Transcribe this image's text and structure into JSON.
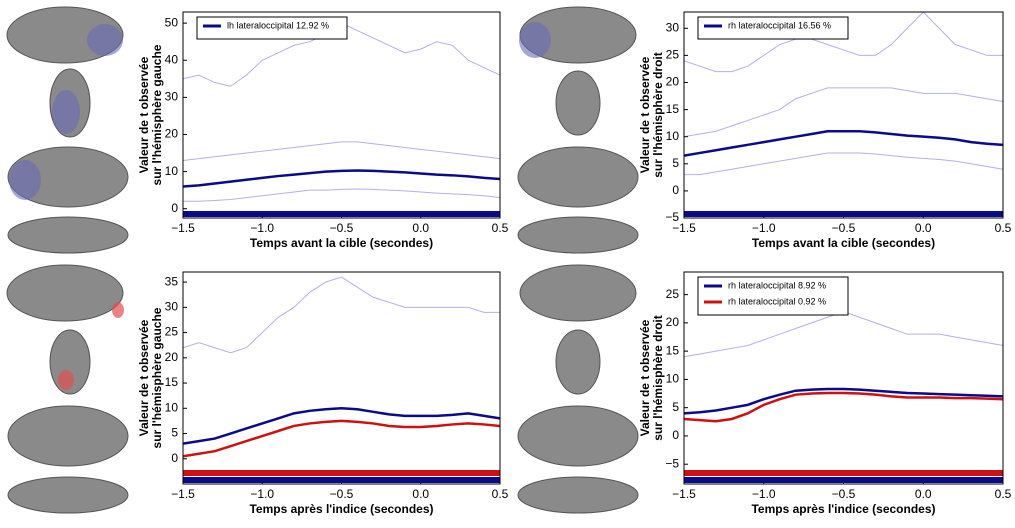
{
  "chart_data": [
    {
      "type": "line",
      "ylabel": [
        "Valeur de t observée",
        "sur l'hémisphère gauche"
      ],
      "xlabel": "Temps avant la cible (secondes)",
      "x": [
        -1.5,
        -1.4,
        -1.3,
        -1.2,
        -1.1,
        -1.0,
        -0.9,
        -0.8,
        -0.7,
        -0.6,
        -0.5,
        -0.4,
        -0.3,
        -0.2,
        -0.1,
        0.0,
        0.1,
        0.2,
        0.3,
        0.4,
        0.5
      ],
      "xlim": [
        -1.5,
        0.5
      ],
      "xticks": [
        {
          "value": -1.5,
          "label": "−1.5"
        },
        {
          "value": -1.0,
          "label": "−1.0"
        },
        {
          "value": -0.5,
          "label": "−0.5"
        },
        {
          "value": 0,
          "label": "0.0"
        },
        0.5
      ],
      "ylim": [
        -2.5,
        53
      ],
      "yticks": [
        0,
        10,
        20,
        30,
        40,
        50
      ],
      "series": [
        {
          "color": "#3a3ad0",
          "linewidth": 1,
          "values": [
            35,
            36,
            34,
            33,
            36,
            40,
            42,
            44,
            45,
            47,
            50,
            48,
            46,
            44,
            42,
            43,
            45,
            44,
            40,
            38,
            36
          ]
        },
        {
          "color": "#3a3ad0",
          "linewidth": 1,
          "values": [
            13,
            13.5,
            14,
            14.5,
            15,
            15.5,
            16,
            16.5,
            17,
            17.5,
            18,
            18,
            17.5,
            17,
            16.5,
            16,
            15.5,
            15,
            14.5,
            14,
            13.5
          ]
        },
        {
          "color": "#3a3ad0",
          "linewidth": 1,
          "values": [
            2,
            2,
            2.2,
            2.5,
            3,
            3.5,
            4,
            4.5,
            5,
            5,
            5.2,
            5.3,
            5.2,
            5,
            4.8,
            4.5,
            4.2,
            4,
            3.8,
            3.5,
            3
          ]
        },
        {
          "name": "lh lateraloccipital 12.92 %",
          "color": "#0a0a8a",
          "linewidth": 2.5,
          "values": [
            6,
            6.3,
            6.8,
            7.3,
            7.8,
            8.3,
            8.8,
            9.2,
            9.6,
            10,
            10.2,
            10.3,
            10.2,
            10,
            9.8,
            9.5,
            9.2,
            9,
            8.7,
            8.3,
            8
          ]
        }
      ]
    },
    {
      "type": "line",
      "ylabel": [
        "Valeur de t observée",
        "sur l'hémisphère droit"
      ],
      "xlabel": "Temps avant la cible (secondes)",
      "x": [
        -1.5,
        -1.4,
        -1.3,
        -1.2,
        -1.1,
        -1.0,
        -0.9,
        -0.8,
        -0.7,
        -0.6,
        -0.5,
        -0.4,
        -0.3,
        -0.2,
        -0.1,
        0.0,
        0.1,
        0.2,
        0.3,
        0.4,
        0.5
      ],
      "xlim": [
        -1.5,
        0.5
      ],
      "xticks": [
        {
          "value": -1.5,
          "label": "−1.5"
        },
        {
          "value": -1.0,
          "label": "−1.0"
        },
        {
          "value": -0.5,
          "label": "−0.5"
        },
        {
          "value": 0,
          "label": "0.0"
        },
        0.5
      ],
      "ylim": [
        -5,
        33
      ],
      "yticks": [
        {
          "value": -5,
          "label": "−5"
        },
        0,
        5,
        10,
        15,
        20,
        25,
        30
      ],
      "series": [
        {
          "color": "#3a3ad0",
          "linewidth": 1,
          "values": [
            24,
            23,
            22,
            22,
            23,
            25,
            27,
            28,
            28,
            27,
            26,
            25,
            25,
            27,
            30,
            33,
            30,
            27,
            26,
            25,
            25
          ]
        },
        {
          "color": "#3a3ad0",
          "linewidth": 1,
          "values": [
            10,
            10.5,
            11,
            12,
            13,
            14,
            15,
            17,
            18,
            19,
            19,
            19,
            19,
            19,
            18.5,
            18,
            18,
            18,
            17.5,
            17,
            16.5
          ]
        },
        {
          "color": "#3a3ad0",
          "linewidth": 1,
          "values": [
            3,
            3,
            3.5,
            4,
            4.5,
            5,
            5.5,
            6,
            6.5,
            7,
            7,
            7,
            6.8,
            6.5,
            6.2,
            6,
            5.8,
            5.5,
            5,
            4.5,
            4
          ]
        },
        {
          "name": "rh lateraloccipital 16.56 %",
          "color": "#0a0a8a",
          "linewidth": 2.5,
          "values": [
            6.5,
            7,
            7.5,
            8,
            8.5,
            9,
            9.5,
            10,
            10.5,
            11,
            11,
            11,
            10.8,
            10.5,
            10.2,
            10,
            9.8,
            9.5,
            9,
            8.7,
            8.5
          ]
        }
      ]
    },
    {
      "type": "line",
      "ylabel": [
        "Valeur de t observée",
        "sur l'hémisphère gauche"
      ],
      "xlabel": "Temps après l'indice (secondes)",
      "x": [
        -1.5,
        -1.4,
        -1.3,
        -1.2,
        -1.1,
        -1.0,
        -0.9,
        -0.8,
        -0.7,
        -0.6,
        -0.5,
        -0.4,
        -0.3,
        -0.2,
        -0.1,
        0.0,
        0.1,
        0.2,
        0.3,
        0.4,
        0.5
      ],
      "xlim": [
        -1.5,
        0.5
      ],
      "xticks": [
        {
          "value": -1.5,
          "label": "−1.5"
        },
        {
          "value": -1.0,
          "label": "−1.0"
        },
        {
          "value": -0.5,
          "label": "−0.5"
        },
        {
          "value": 0,
          "label": "0.0"
        },
        0.5
      ],
      "ylim": [
        -5,
        37
      ],
      "yticks": [
        0,
        5,
        10,
        15,
        20,
        25,
        30,
        35
      ],
      "series": [
        {
          "color": "#3a3ad0",
          "linewidth": 1,
          "values": [
            22,
            23,
            22,
            21,
            22,
            25,
            28,
            30,
            33,
            35,
            36,
            34,
            32,
            31,
            30,
            30,
            30,
            30,
            30,
            29,
            29
          ]
        },
        {
          "color": "#0a0a8a",
          "linewidth": 2.5,
          "values": [
            3,
            3.5,
            4,
            5,
            6,
            7,
            8,
            9,
            9.5,
            9.8,
            10,
            9.8,
            9.3,
            8.8,
            8.5,
            8.5,
            8.5,
            8.7,
            9,
            8.5,
            8
          ]
        },
        {
          "color": "#d01010",
          "linewidth": 2.5,
          "values": [
            0.5,
            1,
            1.5,
            2.5,
            3.5,
            4.5,
            5.5,
            6.5,
            7,
            7.3,
            7.5,
            7.3,
            7,
            6.5,
            6.3,
            6.3,
            6.5,
            6.8,
            7,
            6.8,
            6.5
          ]
        }
      ]
    },
    {
      "type": "line",
      "ylabel": [
        "Valeur de t observée",
        "sur l'hémisphère droit"
      ],
      "xlabel": "Temps après l'indice (secondes)",
      "x": [
        -1.5,
        -1.4,
        -1.3,
        -1.2,
        -1.1,
        -1.0,
        -0.9,
        -0.8,
        -0.7,
        -0.6,
        -0.5,
        -0.4,
        -0.3,
        -0.2,
        -0.1,
        0.0,
        0.1,
        0.2,
        0.3,
        0.4,
        0.5
      ],
      "xlim": [
        -1.5,
        0.5
      ],
      "xticks": [
        {
          "value": -1.5,
          "label": "−1.5"
        },
        {
          "value": -1.0,
          "label": "−1.0"
        },
        {
          "value": -0.5,
          "label": "−0.5"
        },
        {
          "value": 0,
          "label": "0.0"
        },
        0.5
      ],
      "ylim": [
        -8.5,
        29
      ],
      "yticks": [
        {
          "value": -5,
          "label": "−5"
        },
        0,
        5,
        10,
        15,
        20,
        25
      ],
      "series": [
        {
          "color": "#3a3ad0",
          "linewidth": 1,
          "values": [
            14,
            14.5,
            15,
            15.5,
            16,
            17,
            18,
            19,
            20,
            21,
            22,
            21,
            20,
            19,
            18,
            18,
            18,
            17.5,
            17,
            16.5,
            16
          ]
        },
        {
          "name": "rh lateraloccipital 8.92 %",
          "color": "#0a0a8a",
          "linewidth": 2.5,
          "values": [
            4,
            4.2,
            4.5,
            5,
            5.5,
            6.5,
            7.3,
            8,
            8.2,
            8.3,
            8.3,
            8.2,
            8,
            7.8,
            7.6,
            7.5,
            7.4,
            7.3,
            7.2,
            7.1,
            7
          ]
        },
        {
          "name": "rh lateraloccipital 0.92 %",
          "color": "#d01010",
          "linewidth": 2.5,
          "values": [
            3,
            2.8,
            2.6,
            3,
            4,
            5.5,
            6.5,
            7.3,
            7.5,
            7.6,
            7.6,
            7.5,
            7.3,
            7,
            6.8,
            6.8,
            6.8,
            6.7,
            6.7,
            6.6,
            6.5
          ]
        }
      ]
    }
  ]
}
